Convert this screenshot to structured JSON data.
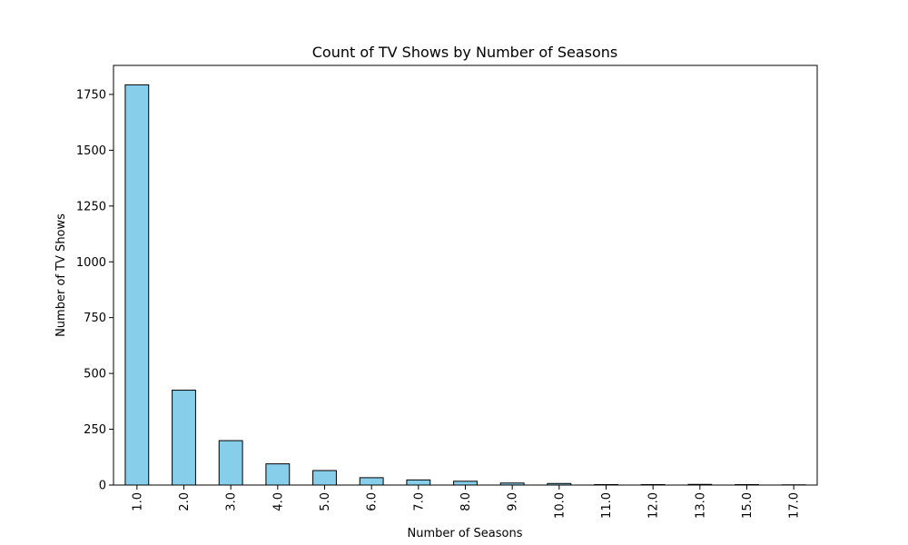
{
  "chart_data": {
    "type": "bar",
    "title": "Count of TV Shows by Number of Seasons",
    "xlabel": "Number of Seasons",
    "ylabel": "Number of TV Shows",
    "categories": [
      "1.0",
      "2.0",
      "3.0",
      "4.0",
      "5.0",
      "6.0",
      "7.0",
      "8.0",
      "9.0",
      "10.0",
      "11.0",
      "12.0",
      "13.0",
      "15.0",
      "17.0"
    ],
    "values": [
      1793,
      425,
      199,
      95,
      65,
      33,
      23,
      17,
      9,
      7,
      2,
      2,
      3,
      2,
      1
    ],
    "ylim": [
      0,
      1880
    ],
    "yticks": [
      0,
      250,
      500,
      750,
      1000,
      1250,
      1500,
      1750
    ],
    "grid": false,
    "legend": "none",
    "bar_color": "#87CEEB",
    "edge_color": "#000000"
  }
}
